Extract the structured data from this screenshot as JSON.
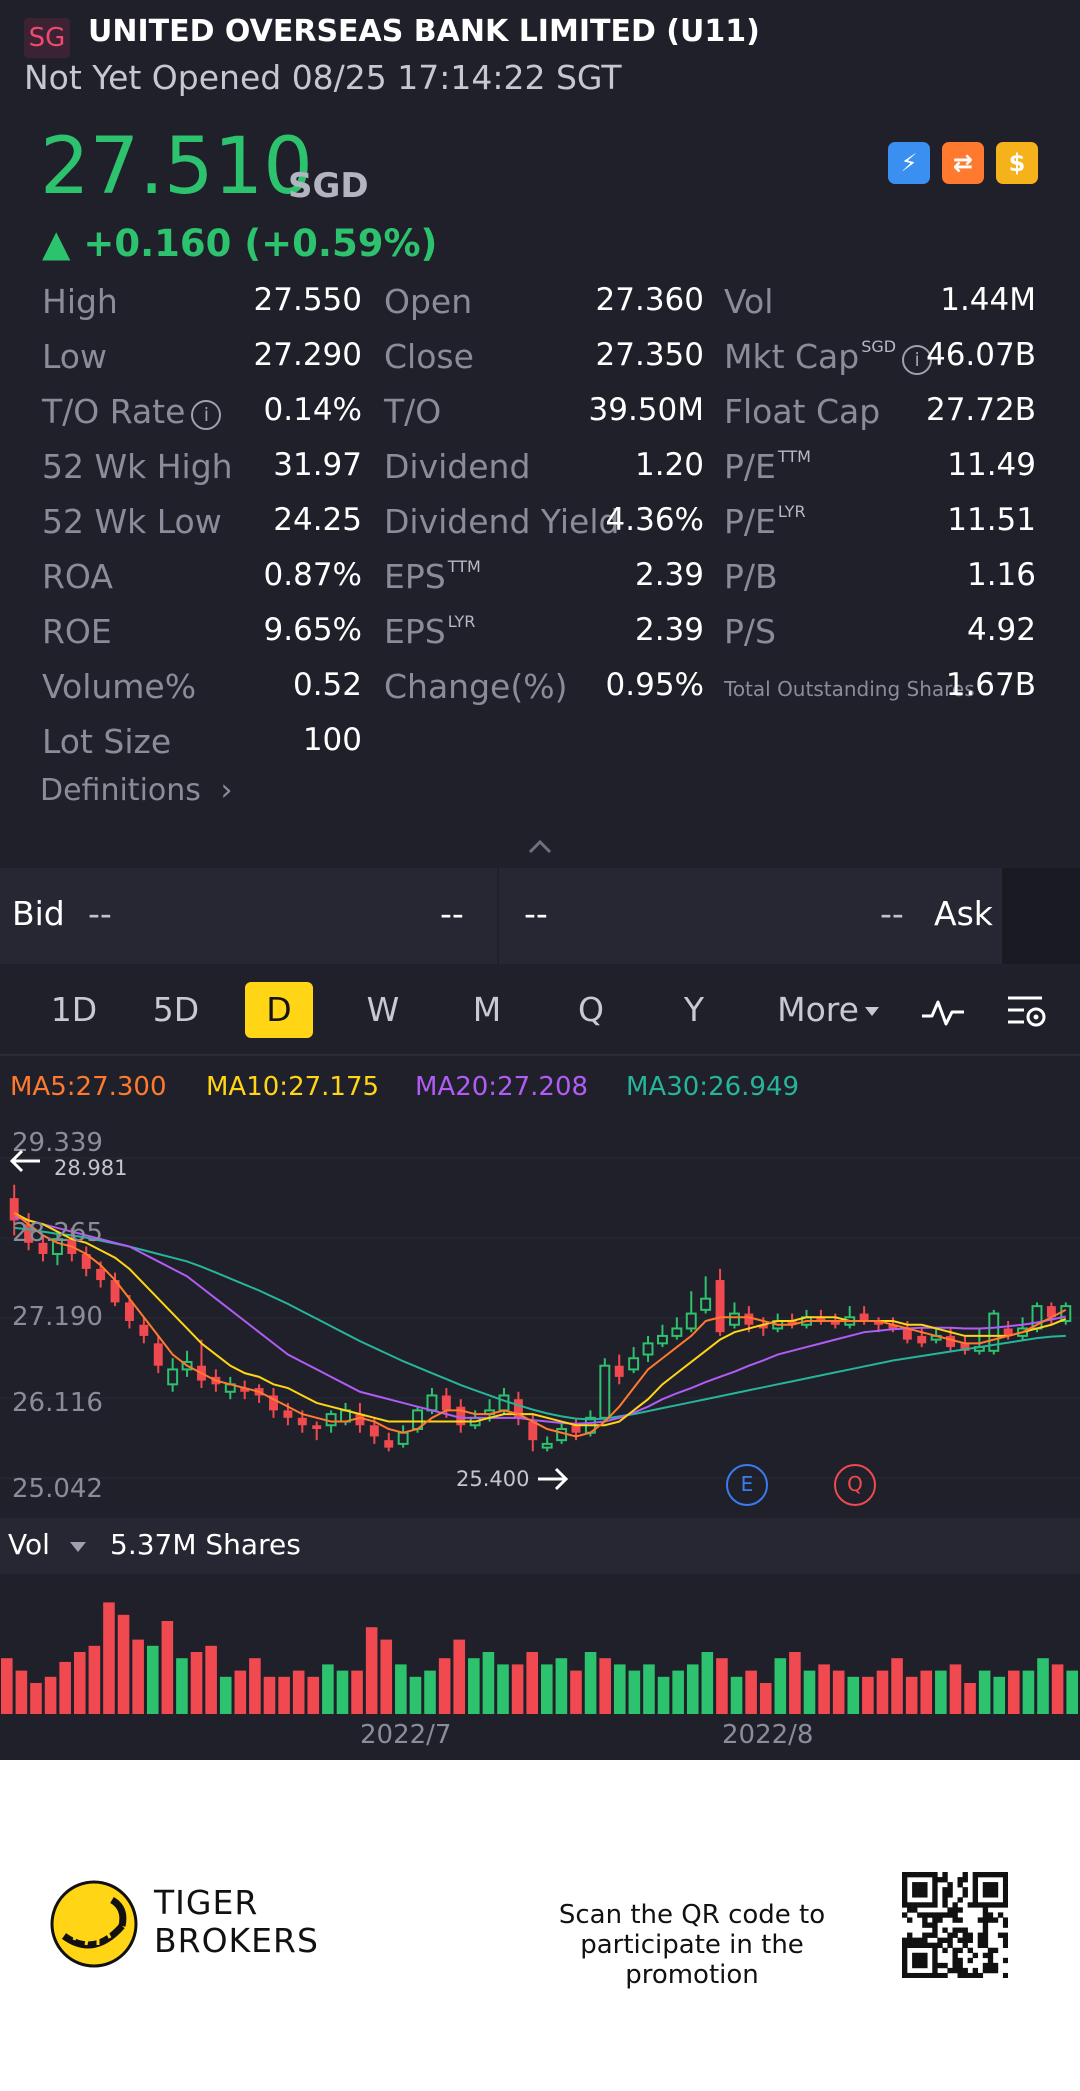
{
  "header": {
    "flag": "SG",
    "title": "UNITED OVERSEAS BANK LIMITED (U11)",
    "status": "Not Yet Opened 08/25 17:14:22 SGT",
    "price": "27.510",
    "currency": "SGD",
    "change": "▲ +0.160 (+0.59%)",
    "badges": [
      "lightning-icon",
      "chart-swap-icon",
      "dollar-icon"
    ],
    "badge_glyphs": [
      "⚡",
      "⇄",
      "$"
    ],
    "colors": {
      "up": "#2dc26d",
      "down": "#f0494f",
      "background": "#1f2029",
      "accent": "#ffd515"
    }
  },
  "stats": {
    "rows": [
      [
        {
          "label": "High",
          "value": "27.550"
        },
        {
          "label": "Open",
          "value": "27.360"
        },
        {
          "label": "Vol",
          "value": "1.44M"
        }
      ],
      [
        {
          "label": "Low",
          "value": "27.290"
        },
        {
          "label": "Close",
          "value": "27.350"
        },
        {
          "label": "Mkt Cap",
          "sup": "SGD",
          "value": "46.07B"
        }
      ],
      [
        {
          "label": "T/O Rate",
          "value": "0.14%"
        },
        {
          "label": "T/O",
          "value": "39.50M"
        },
        {
          "label": "Float Cap",
          "value": "27.72B"
        }
      ],
      [
        {
          "label": "52 Wk High",
          "value": "31.97"
        },
        {
          "label": "Dividend",
          "value": "1.20"
        },
        {
          "label": "P/E",
          "sup": "TTM",
          "value": "11.49"
        }
      ],
      [
        {
          "label": "52 Wk Low",
          "value": "24.25"
        },
        {
          "label": "Dividend Yield",
          "value": "4.36%"
        },
        {
          "label": "P/E",
          "sup": "LYR",
          "value": "11.51"
        }
      ],
      [
        {
          "label": "ROA",
          "value": "0.87%"
        },
        {
          "label": "EPS",
          "sup": "TTM",
          "value": "2.39"
        },
        {
          "label": "P/B",
          "value": "1.16"
        }
      ],
      [
        {
          "label": "ROE",
          "value": "9.65%"
        },
        {
          "label": "EPS",
          "sup": "LYR",
          "value": "2.39"
        },
        {
          "label": "P/S",
          "value": "4.92"
        }
      ],
      [
        {
          "label": "Volume%",
          "value": "0.52"
        },
        {
          "label": "Change(%)",
          "value": "0.95%"
        },
        {
          "label": "Total Outstanding Shares",
          "value": "1.67B"
        }
      ],
      [
        {
          "label": "Lot Size",
          "value": "100"
        }
      ]
    ],
    "definitions": "Definitions"
  },
  "bidask": {
    "bid_label": "Bid",
    "bid_price": "--",
    "bid_size": "--",
    "ask_price": "--",
    "ask_size": "--",
    "ask_label": "Ask"
  },
  "tabs": {
    "items": [
      "1D",
      "5D",
      "D",
      "W",
      "M",
      "Q",
      "Y"
    ],
    "active": "D",
    "more": "More"
  },
  "ma": {
    "ma5": "MA5:27.300",
    "ma10": "MA10:27.175",
    "ma20": "MA20:27.208",
    "ma30": "MA30:26.949",
    "colors": {
      "ma5": "#ff7a2e",
      "ma10": "#ffd515",
      "ma20": "#b05cf5",
      "ma30": "#26b59a"
    }
  },
  "chart_data": {
    "type": "candlestick",
    "y_ticks": [
      "29.339",
      "28.265",
      "27.190",
      "26.116",
      "25.042"
    ],
    "ylim": [
      25.042,
      29.339
    ],
    "high_label": "28.981",
    "low_label": "25.400",
    "event_markers": [
      "E",
      "Q"
    ],
    "x_labels": [
      "2022/7",
      "2022/8"
    ],
    "candles": [
      [
        28.8,
        28.5,
        28.98,
        28.3
      ],
      [
        28.45,
        28.2,
        28.6,
        28.1
      ],
      [
        28.2,
        28.05,
        28.3,
        27.95
      ],
      [
        28.05,
        28.25,
        28.35,
        27.9
      ],
      [
        28.25,
        28.05,
        28.4,
        27.95
      ],
      [
        28.05,
        27.85,
        28.15,
        27.75
      ],
      [
        27.85,
        27.7,
        27.95,
        27.6
      ],
      [
        27.7,
        27.4,
        27.8,
        27.35
      ],
      [
        27.4,
        27.15,
        27.5,
        27.05
      ],
      [
        27.1,
        26.95,
        27.2,
        26.85
      ],
      [
        26.85,
        26.55,
        26.95,
        26.45
      ],
      [
        26.3,
        26.5,
        26.65,
        26.2
      ],
      [
        26.5,
        26.6,
        26.75,
        26.4
      ],
      [
        26.55,
        26.35,
        26.9,
        26.25
      ],
      [
        26.4,
        26.3,
        26.5,
        26.2
      ],
      [
        26.2,
        26.3,
        26.4,
        26.1
      ],
      [
        26.25,
        26.2,
        26.35,
        26.1
      ],
      [
        26.25,
        26.15,
        26.3,
        26.05
      ],
      [
        26.15,
        25.95,
        26.25,
        25.85
      ],
      [
        25.95,
        25.85,
        26.05,
        25.75
      ],
      [
        25.85,
        25.75,
        25.95,
        25.65
      ],
      [
        25.75,
        25.7,
        25.8,
        25.55
      ],
      [
        25.75,
        25.9,
        25.95,
        25.65
      ],
      [
        25.8,
        25.95,
        26.05,
        25.75
      ],
      [
        25.9,
        25.75,
        26.05,
        25.65
      ],
      [
        25.75,
        25.6,
        25.85,
        25.5
      ],
      [
        25.55,
        25.45,
        25.65,
        25.4
      ],
      [
        25.5,
        25.65,
        25.75,
        25.45
      ],
      [
        25.7,
        25.95,
        26.0,
        25.65
      ],
      [
        25.95,
        26.15,
        26.25,
        25.9
      ],
      [
        26.15,
        25.95,
        26.25,
        25.85
      ],
      [
        26.0,
        25.75,
        26.1,
        25.65
      ],
      [
        25.75,
        25.85,
        25.95,
        25.7
      ],
      [
        25.9,
        25.95,
        26.1,
        25.8
      ],
      [
        25.95,
        26.15,
        26.25,
        25.9
      ],
      [
        26.1,
        25.85,
        26.2,
        25.75
      ],
      [
        25.8,
        25.55,
        25.9,
        25.4
      ],
      [
        25.45,
        25.5,
        25.6,
        25.4
      ],
      [
        25.55,
        25.7,
        25.8,
        25.5
      ],
      [
        25.75,
        25.65,
        25.85,
        25.55
      ],
      [
        25.65,
        25.85,
        25.95,
        25.6
      ],
      [
        25.85,
        26.55,
        26.65,
        25.8
      ],
      [
        26.55,
        26.4,
        26.7,
        26.3
      ],
      [
        26.5,
        26.65,
        26.8,
        26.45
      ],
      [
        26.7,
        26.85,
        26.95,
        26.6
      ],
      [
        26.85,
        26.95,
        27.1,
        26.8
      ],
      [
        26.95,
        27.05,
        27.2,
        26.9
      ],
      [
        27.05,
        27.25,
        27.55,
        27.0
      ],
      [
        27.3,
        27.45,
        27.75,
        27.25
      ],
      [
        27.7,
        27.0,
        27.85,
        26.95
      ],
      [
        27.1,
        27.25,
        27.4,
        27.05
      ],
      [
        27.25,
        27.1,
        27.35,
        27.0
      ],
      [
        27.1,
        27.05,
        27.2,
        26.95
      ],
      [
        27.05,
        27.15,
        27.25,
        27.0
      ],
      [
        27.15,
        27.1,
        27.25,
        27.05
      ],
      [
        27.1,
        27.2,
        27.3,
        27.05
      ],
      [
        27.2,
        27.15,
        27.3,
        27.1
      ],
      [
        27.15,
        27.1,
        27.25,
        27.05
      ],
      [
        27.1,
        27.2,
        27.35,
        27.05
      ],
      [
        27.25,
        27.15,
        27.35,
        27.1
      ],
      [
        27.15,
        27.1,
        27.2,
        27.0
      ],
      [
        27.1,
        27.05,
        27.2,
        27.0
      ],
      [
        27.05,
        26.9,
        27.15,
        26.85
      ],
      [
        26.95,
        26.85,
        27.05,
        26.8
      ],
      [
        26.9,
        26.95,
        27.05,
        26.85
      ],
      [
        26.95,
        26.8,
        27.05,
        26.75
      ],
      [
        26.85,
        26.75,
        26.95,
        26.7
      ],
      [
        26.75,
        26.8,
        27.05,
        26.7
      ],
      [
        26.75,
        27.25,
        27.3,
        26.7
      ],
      [
        27.05,
        26.95,
        27.15,
        26.9
      ],
      [
        26.95,
        27.05,
        27.2,
        26.9
      ],
      [
        27.05,
        27.35,
        27.4,
        27.0
      ],
      [
        27.35,
        27.2,
        27.4,
        27.1
      ],
      [
        27.15,
        27.35,
        27.4,
        27.1
      ]
    ],
    "ma5": [
      28.6,
      28.45,
      28.3,
      28.2,
      28.15,
      28.05,
      27.9,
      27.7,
      27.45,
      27.2,
      26.95,
      26.7,
      26.55,
      26.45,
      26.35,
      26.3,
      26.25,
      26.2,
      26.1,
      26.0,
      25.9,
      25.85,
      25.8,
      25.8,
      25.85,
      25.8,
      25.7,
      25.65,
      25.7,
      25.85,
      25.95,
      25.95,
      25.9,
      25.9,
      25.95,
      25.9,
      25.8,
      25.7,
      25.65,
      25.6,
      25.65,
      25.8,
      26.0,
      26.25,
      26.5,
      26.65,
      26.8,
      26.95,
      27.15,
      27.2,
      27.2,
      27.2,
      27.15,
      27.1,
      27.1,
      27.15,
      27.15,
      27.15,
      27.15,
      27.15,
      27.15,
      27.1,
      27.05,
      27.0,
      26.95,
      26.9,
      26.85,
      26.85,
      26.9,
      26.95,
      27.0,
      27.1,
      27.2,
      27.3
    ],
    "ma10": [
      28.6,
      28.5,
      28.45,
      28.35,
      28.25,
      28.2,
      28.1,
      28.0,
      27.85,
      27.65,
      27.45,
      27.25,
      27.05,
      26.85,
      26.7,
      26.55,
      26.45,
      26.4,
      26.3,
      26.25,
      26.15,
      26.05,
      26.0,
      25.95,
      25.9,
      25.85,
      25.8,
      25.8,
      25.8,
      25.8,
      25.8,
      25.8,
      25.8,
      25.85,
      25.9,
      25.9,
      25.9,
      25.85,
      25.8,
      25.75,
      25.75,
      25.75,
      25.8,
      25.95,
      26.1,
      26.3,
      26.45,
      26.6,
      26.75,
      26.9,
      27.0,
      27.05,
      27.1,
      27.15,
      27.15,
      27.2,
      27.2,
      27.2,
      27.15,
      27.15,
      27.15,
      27.15,
      27.1,
      27.1,
      27.05,
      27.0,
      26.95,
      26.95,
      26.95,
      26.95,
      27.0,
      27.05,
      27.1,
      27.18
    ],
    "ma20": [
      28.55,
      28.5,
      28.45,
      28.4,
      28.35,
      28.3,
      28.25,
      28.2,
      28.15,
      28.05,
      27.95,
      27.85,
      27.75,
      27.6,
      27.45,
      27.3,
      27.15,
      27.0,
      26.85,
      26.7,
      26.6,
      26.5,
      26.4,
      26.3,
      26.2,
      26.15,
      26.1,
      26.05,
      26.0,
      25.95,
      25.9,
      25.85,
      25.85,
      25.85,
      25.85,
      25.85,
      25.82,
      25.8,
      25.78,
      25.77,
      25.78,
      25.8,
      25.85,
      25.92,
      26.0,
      26.1,
      26.18,
      26.25,
      26.33,
      26.4,
      26.47,
      26.55,
      26.62,
      26.7,
      26.75,
      26.8,
      26.85,
      26.9,
      26.95,
      27.0,
      27.02,
      27.04,
      27.05,
      27.06,
      27.06,
      27.06,
      27.05,
      27.05,
      27.06,
      27.08,
      27.1,
      27.13,
      27.17,
      27.21
    ],
    "ma30": [
      28.4,
      28.38,
      28.35,
      28.32,
      28.3,
      28.27,
      28.23,
      28.19,
      28.15,
      28.1,
      28.05,
      28.0,
      27.95,
      27.88,
      27.8,
      27.72,
      27.64,
      27.56,
      27.47,
      27.38,
      27.28,
      27.18,
      27.08,
      26.98,
      26.88,
      26.79,
      26.7,
      26.61,
      26.53,
      26.45,
      26.37,
      26.29,
      26.22,
      26.15,
      26.08,
      26.02,
      25.96,
      25.91,
      25.87,
      25.84,
      25.83,
      25.84,
      25.87,
      25.9,
      25.94,
      25.98,
      26.02,
      26.06,
      26.1,
      26.14,
      26.18,
      26.22,
      26.26,
      26.3,
      26.34,
      26.38,
      26.42,
      26.46,
      26.5,
      26.54,
      26.58,
      26.62,
      26.65,
      26.68,
      26.71,
      26.74,
      26.77,
      26.8,
      26.83,
      26.86,
      26.89,
      26.92,
      26.94,
      26.95
    ],
    "volume_label": "Vol",
    "volume_value": "5.37M Shares",
    "volumes": [
      0.45,
      0.35,
      0.25,
      0.3,
      0.42,
      0.5,
      0.55,
      0.9,
      0.8,
      0.6,
      0.55,
      0.75,
      0.45,
      0.5,
      0.55,
      0.3,
      0.35,
      0.45,
      0.3,
      0.3,
      0.35,
      0.3,
      0.4,
      0.35,
      0.35,
      0.7,
      0.6,
      0.4,
      0.3,
      0.35,
      0.45,
      0.6,
      0.45,
      0.5,
      0.4,
      0.4,
      0.5,
      0.4,
      0.45,
      0.35,
      0.5,
      0.45,
      0.4,
      0.35,
      0.4,
      0.3,
      0.35,
      0.4,
      0.5,
      0.45,
      0.3,
      0.35,
      0.25,
      0.45,
      0.5,
      0.35,
      0.4,
      0.35,
      0.3,
      0.3,
      0.35,
      0.45,
      0.3,
      0.35,
      0.35,
      0.4,
      0.25,
      0.35,
      0.3,
      0.35,
      0.35,
      0.45,
      0.4,
      0.35
    ],
    "volume_is_up": [
      false,
      false,
      false,
      false,
      false,
      false,
      false,
      false,
      false,
      false,
      true,
      false,
      true,
      false,
      false,
      true,
      false,
      false,
      false,
      false,
      false,
      false,
      true,
      true,
      false,
      false,
      false,
      true,
      true,
      true,
      false,
      false,
      true,
      true,
      true,
      false,
      false,
      true,
      true,
      false,
      true,
      false,
      true,
      true,
      true,
      true,
      true,
      true,
      true,
      false,
      true,
      false,
      false,
      true,
      false,
      true,
      false,
      false,
      true,
      false,
      false,
      false,
      false,
      false,
      true,
      false,
      false,
      true,
      true,
      false,
      true,
      true,
      false,
      true
    ]
  },
  "volume": {
    "label": "Vol",
    "value": "5.37M Shares",
    "dates": [
      "2022/7",
      "2022/8"
    ]
  },
  "footer": {
    "brand_line1": "TIGER",
    "brand_line2": "BROKERS",
    "promo_line1": "Scan the QR code to",
    "promo_line2": "participate in the promotion"
  }
}
